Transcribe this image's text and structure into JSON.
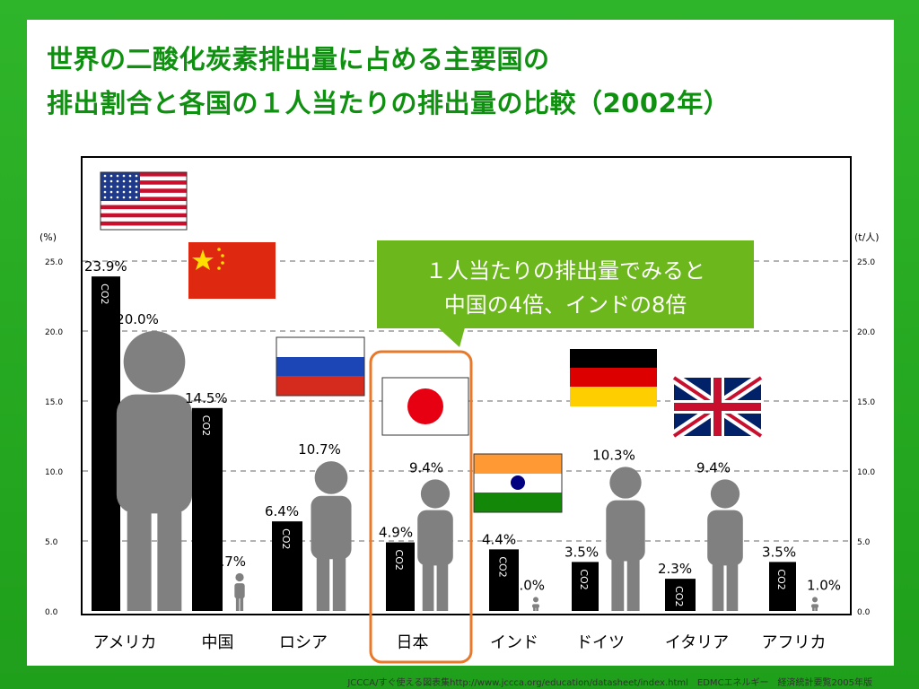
{
  "slide": {
    "title_line1": "世界の二酸化炭素排出量に占める主要国の",
    "title_line2": "排出割合と各国の１人当たりの排出量の比較（2002年）",
    "callout_line1": "１人当たりの排出量でみると",
    "callout_line2": "中国の4倍、インドの8倍",
    "source": "JCCCA/すぐ使える図表集http://www.jccca.org/education/datasheet/index.html　EDMCエネルギー　経済統計要覧2005年版"
  },
  "chart_data": {
    "type": "bar",
    "left_axis_unit": "(%)",
    "right_axis_unit": "(t/人)",
    "ticks": [
      "0.0",
      "5.0",
      "10.0",
      "15.0",
      "20.0",
      "25.0"
    ],
    "tick_values": [
      0,
      5,
      10,
      15,
      20,
      25
    ],
    "ylim": [
      0,
      25
    ],
    "grid": true,
    "bar_label": "CO2",
    "colors": {
      "share_bar": "#000000",
      "per_capita_figure": "#808080",
      "callout": "#6cb71c",
      "highlight": "#e8782a"
    },
    "countries": [
      {
        "name": "アメリカ",
        "share": 23.9,
        "share_label": "23.9%",
        "per_capita": 20.0,
        "per_capita_label": "20.0%",
        "flag": "us-flag"
      },
      {
        "name": "中国",
        "share": 14.5,
        "share_label": "14.5%",
        "per_capita": 2.7,
        "per_capita_label": "2.7%",
        "flag": "china-flag"
      },
      {
        "name": "ロシア",
        "share": 6.4,
        "share_label": "6.4%",
        "per_capita": 10.7,
        "per_capita_label": "10.7%",
        "flag": "russia-flag"
      },
      {
        "name": "日本",
        "share": 4.9,
        "share_label": "4.9%",
        "per_capita": 9.4,
        "per_capita_label": "9.4%",
        "flag": "japan-flag",
        "highlight": true
      },
      {
        "name": "インド",
        "share": 4.4,
        "share_label": "4.4%",
        "per_capita": 1.0,
        "per_capita_label": "1.0%",
        "flag": "india-flag"
      },
      {
        "name": "ドイツ",
        "share": 3.5,
        "share_label": "3.5%",
        "per_capita": 10.3,
        "per_capita_label": "10.3%",
        "flag": "germany-flag"
      },
      {
        "name": "イタリア",
        "share": 2.3,
        "share_label": "2.3%",
        "per_capita": 9.4,
        "per_capita_label": "9.4%",
        "flag": "uk-flag"
      },
      {
        "name": "アフリカ",
        "share": 3.5,
        "share_label": "3.5%",
        "per_capita": 1.0,
        "per_capita_label": "1.0%"
      }
    ]
  }
}
